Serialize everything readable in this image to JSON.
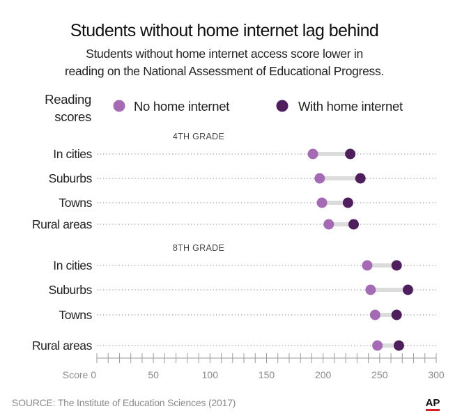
{
  "chart_data": {
    "type": "dot-plot",
    "title": "Students without home internet lag behind",
    "subtitle_lines": [
      "Students without home internet access score lower in",
      "reading on the National Assessment of Educational Progress."
    ],
    "legend_title_lines": [
      "Reading",
      "scores"
    ],
    "series": [
      {
        "name": "No home internet",
        "color": "#a46ab4"
      },
      {
        "name": "With home internet",
        "color": "#4e1f5c"
      }
    ],
    "groups": [
      {
        "label": "4TH GRADE",
        "rows": [
          {
            "label": "In cities",
            "values": [
              191,
              224
            ]
          },
          {
            "label": "Suburbs",
            "values": [
              197,
              233
            ]
          },
          {
            "label": "Towns",
            "values": [
              199,
              222
            ]
          },
          {
            "label": "Rural areas",
            "values": [
              205,
              227
            ]
          }
        ]
      },
      {
        "label": "8TH GRADE",
        "rows": [
          {
            "label": "In cities",
            "values": [
              239,
              265
            ]
          },
          {
            "label": "Suburbs",
            "values": [
              242,
              275
            ]
          },
          {
            "label": "Towns",
            "values": [
              246,
              265
            ]
          },
          {
            "label": "Rural areas",
            "values": [
              248,
              267
            ]
          }
        ]
      }
    ],
    "x_axis": {
      "min": 0,
      "max": 300,
      "ticks": [
        {
          "value": 0,
          "label": "Score 0"
        },
        {
          "value": 50,
          "label": "50"
        },
        {
          "value": 100,
          "label": "100"
        },
        {
          "value": 150,
          "label": "150"
        },
        {
          "value": 200,
          "label": "200"
        },
        {
          "value": 250,
          "label": "250"
        },
        {
          "value": 300,
          "label": "300"
        }
      ],
      "minor_tick_step": 10
    },
    "colors": {
      "connector": "#dcdcdc",
      "gridline": "#9a9a9a",
      "axis": "#9a9a9a",
      "logo_bar": "#d4202a"
    },
    "source": "SOURCE: The Institute of Education Sciences (2017)",
    "logo": "AP"
  }
}
